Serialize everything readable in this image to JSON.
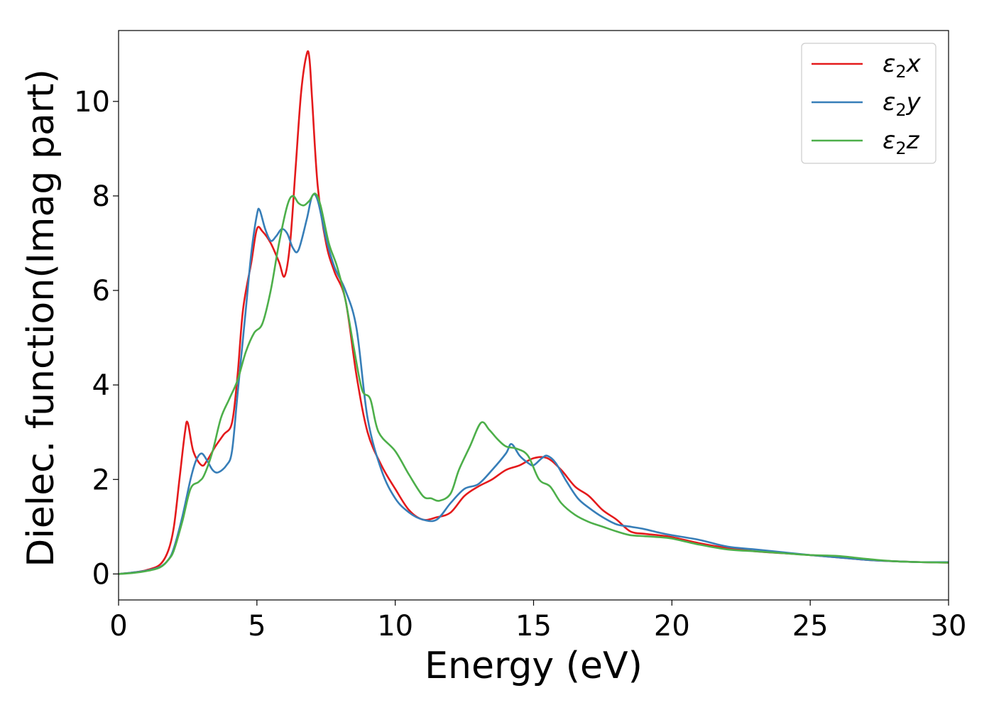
{
  "chart_data": {
    "type": "line",
    "title": "",
    "xlabel": "Energy (eV)",
    "ylabel": "Dielec. function(Imag part)",
    "xlim": [
      0,
      30
    ],
    "ylim": [
      -0.55,
      11.5
    ],
    "xticks": [
      0,
      5,
      10,
      15,
      20,
      25,
      30
    ],
    "xtick_labels": [
      "0",
      "5",
      "10",
      "15",
      "20",
      "25",
      "30"
    ],
    "yticks": [
      0,
      2,
      4,
      6,
      8,
      10
    ],
    "ytick_labels": [
      "0",
      "2",
      "4",
      "6",
      "8",
      "10"
    ],
    "grid": false,
    "legend_position": "top-right",
    "series": [
      {
        "name": "ε2x",
        "name_main": "ε",
        "name_sub": "2",
        "name_tail": "x",
        "color": "#e41a1c",
        "x": [
          0,
          0.5,
          1,
          1.5,
          1.8,
          2.0,
          2.2,
          2.4,
          2.5,
          2.7,
          3.0,
          3.2,
          3.5,
          3.8,
          4.1,
          4.3,
          4.5,
          4.8,
          5.0,
          5.2,
          5.5,
          5.8,
          6.0,
          6.2,
          6.4,
          6.6,
          6.8,
          6.9,
          7.0,
          7.2,
          7.5,
          7.8,
          8.2,
          8.6,
          9.0,
          9.5,
          10.0,
          10.5,
          11.0,
          11.5,
          12.0,
          12.5,
          13.0,
          13.5,
          14.0,
          14.5,
          15.0,
          15.5,
          16.0,
          16.5,
          17.0,
          17.5,
          18.0,
          18.5,
          19.0,
          19.5,
          20.0,
          21.0,
          22.0,
          23.0,
          24.0,
          25.0,
          26.0,
          27.0,
          28.0,
          29.0,
          30.0
        ],
        "y": [
          0.0,
          0.03,
          0.08,
          0.2,
          0.5,
          1.0,
          2.0,
          3.0,
          3.2,
          2.6,
          2.3,
          2.4,
          2.7,
          2.95,
          3.2,
          4.2,
          5.6,
          6.6,
          7.3,
          7.25,
          7.0,
          6.6,
          6.3,
          7.0,
          8.6,
          10.2,
          11.0,
          10.9,
          10.0,
          8.2,
          7.0,
          6.4,
          5.8,
          4.2,
          3.0,
          2.3,
          1.8,
          1.35,
          1.15,
          1.2,
          1.3,
          1.65,
          1.85,
          2.0,
          2.2,
          2.3,
          2.45,
          2.45,
          2.2,
          1.85,
          1.65,
          1.35,
          1.15,
          0.9,
          0.85,
          0.82,
          0.78,
          0.65,
          0.55,
          0.48,
          0.44,
          0.4,
          0.35,
          0.3,
          0.27,
          0.25,
          0.24
        ]
      },
      {
        "name": "ε2y",
        "name_main": "ε",
        "name_sub": "2",
        "name_tail": "y",
        "color": "#377eb8",
        "x": [
          0,
          0.5,
          1,
          1.5,
          1.8,
          2.0,
          2.3,
          2.6,
          2.8,
          3.0,
          3.2,
          3.4,
          3.6,
          3.9,
          4.1,
          4.3,
          4.6,
          4.8,
          5.0,
          5.1,
          5.3,
          5.5,
          5.7,
          5.9,
          6.1,
          6.3,
          6.5,
          6.8,
          7.0,
          7.2,
          7.5,
          7.8,
          8.2,
          8.6,
          9.0,
          9.5,
          10.0,
          10.5,
          11.0,
          11.5,
          12.0,
          12.5,
          13.0,
          13.5,
          14.0,
          14.2,
          14.5,
          14.8,
          15.0,
          15.3,
          15.5,
          15.8,
          16.2,
          16.6,
          17.0,
          17.5,
          18.0,
          18.5,
          19.0,
          19.5,
          20.0,
          21.0,
          22.0,
          23.0,
          24.0,
          25.0,
          26.0,
          27.0,
          28.0,
          29.0,
          30.0
        ],
        "y": [
          0.0,
          0.03,
          0.07,
          0.15,
          0.3,
          0.55,
          1.2,
          2.0,
          2.4,
          2.55,
          2.4,
          2.2,
          2.15,
          2.3,
          2.6,
          3.8,
          5.6,
          6.8,
          7.6,
          7.7,
          7.3,
          7.05,
          7.15,
          7.3,
          7.2,
          6.9,
          6.85,
          7.5,
          8.0,
          7.9,
          7.1,
          6.5,
          6.0,
          5.2,
          3.3,
          2.2,
          1.6,
          1.3,
          1.15,
          1.15,
          1.5,
          1.8,
          1.9,
          2.2,
          2.55,
          2.75,
          2.5,
          2.35,
          2.3,
          2.45,
          2.5,
          2.35,
          1.95,
          1.6,
          1.4,
          1.2,
          1.05,
          1.0,
          0.95,
          0.88,
          0.82,
          0.72,
          0.58,
          0.52,
          0.46,
          0.4,
          0.35,
          0.3,
          0.27,
          0.25,
          0.25
        ]
      },
      {
        "name": "ε2z",
        "name_main": "ε",
        "name_sub": "2",
        "name_tail": "z",
        "color": "#4daf4a",
        "x": [
          0,
          0.5,
          1,
          1.5,
          1.8,
          2.0,
          2.3,
          2.6,
          2.9,
          3.1,
          3.4,
          3.7,
          4.0,
          4.3,
          4.6,
          4.9,
          5.2,
          5.5,
          5.8,
          6.1,
          6.3,
          6.5,
          6.7,
          6.9,
          7.1,
          7.3,
          7.6,
          7.9,
          8.2,
          8.5,
          8.8,
          9.1,
          9.4,
          10.0,
          10.5,
          11.0,
          11.3,
          11.6,
          12.0,
          12.3,
          12.7,
          13.1,
          13.4,
          13.7,
          14.0,
          14.4,
          14.8,
          15.2,
          15.6,
          16.0,
          16.5,
          17.0,
          17.5,
          18.0,
          18.5,
          19.0,
          19.5,
          20.0,
          21.0,
          22.0,
          23.0,
          24.0,
          25.0,
          26.0,
          27.0,
          28.0,
          29.0,
          30.0
        ],
        "y": [
          0.0,
          0.02,
          0.06,
          0.14,
          0.3,
          0.5,
          1.1,
          1.8,
          1.95,
          2.1,
          2.6,
          3.3,
          3.7,
          4.1,
          4.7,
          5.1,
          5.3,
          6.0,
          7.0,
          7.8,
          8.0,
          7.85,
          7.8,
          7.9,
          8.05,
          7.8,
          7.0,
          6.5,
          5.8,
          4.8,
          3.9,
          3.7,
          3.0,
          2.6,
          2.1,
          1.65,
          1.6,
          1.55,
          1.7,
          2.2,
          2.7,
          3.2,
          3.05,
          2.85,
          2.7,
          2.65,
          2.5,
          2.0,
          1.85,
          1.5,
          1.25,
          1.1,
          1.0,
          0.9,
          0.82,
          0.8,
          0.78,
          0.75,
          0.62,
          0.52,
          0.48,
          0.44,
          0.4,
          0.38,
          0.32,
          0.27,
          0.25,
          0.24
        ]
      }
    ]
  }
}
